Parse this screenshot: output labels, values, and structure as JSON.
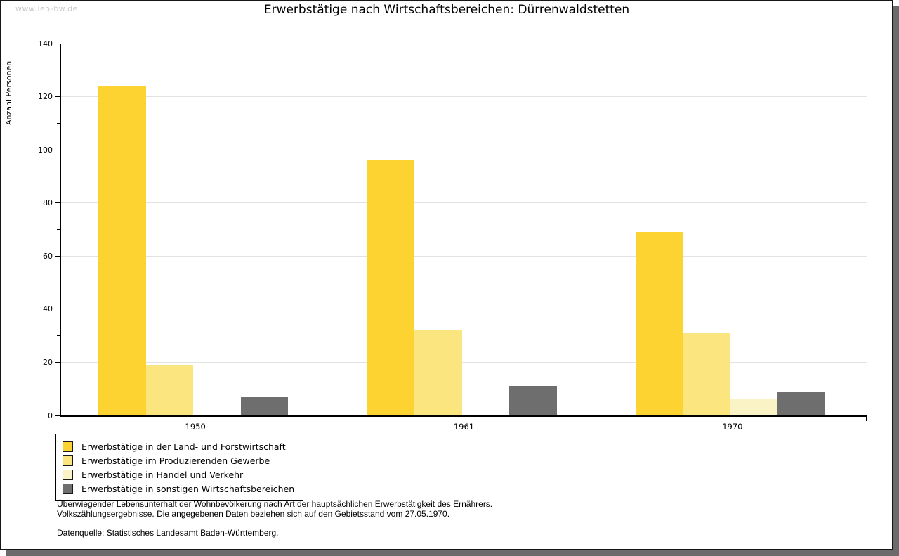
{
  "watermark": "www.leo-bw.de",
  "title": "Erwerbstätige nach Wirtschaftsbereichen: Dürrenwaldstetten",
  "chart_data": {
    "type": "bar",
    "title": "Erwerbstätige nach Wirtschaftsbereichen: Dürrenwaldstetten",
    "xlabel": "",
    "ylabel": "Anzahl Personen",
    "categories": [
      "1950",
      "1961",
      "1970"
    ],
    "series": [
      {
        "name": "Erwerbstätige in der Land- und Forstwirtschaft",
        "color": "#FCD330",
        "values": [
          124,
          96,
          69
        ]
      },
      {
        "name": "Erwerbstätige im Produzierenden Gewerbe",
        "color": "#FAE57E",
        "values": [
          19,
          32,
          31
        ]
      },
      {
        "name": "Erwerbstätige in Handel und Verkehr",
        "color": "#FAF3C5",
        "values": [
          0,
          0,
          6
        ]
      },
      {
        "name": "Erwerbstätige in sonstigen Wirtschaftsbereichen",
        "color": "#6E6E6E",
        "values": [
          7,
          11,
          9
        ]
      }
    ],
    "ylim": [
      0,
      140
    ],
    "ytick_step": 20,
    "yminor_step": 10,
    "grid": true,
    "legend_position": "bottom-left"
  },
  "footer": {
    "line1": "Überwiegender Lebensunterhalt der Wohnbevölkerung nach Art der hauptsächlichen Erwerbstätigkeit des Ernährers.",
    "line2": "Volkszählungsergebnisse. Die angegebenen Daten beziehen sich auf den Gebietsstand vom 27.05.1970.",
    "source": "Datenquelle: Statistisches Landesamt Baden-Württemberg."
  },
  "colors": {
    "grid": "#E2E2E2",
    "axis": "#000000",
    "watermark": "#C9C9C9",
    "frame_shadow": "#6B6B6B"
  }
}
